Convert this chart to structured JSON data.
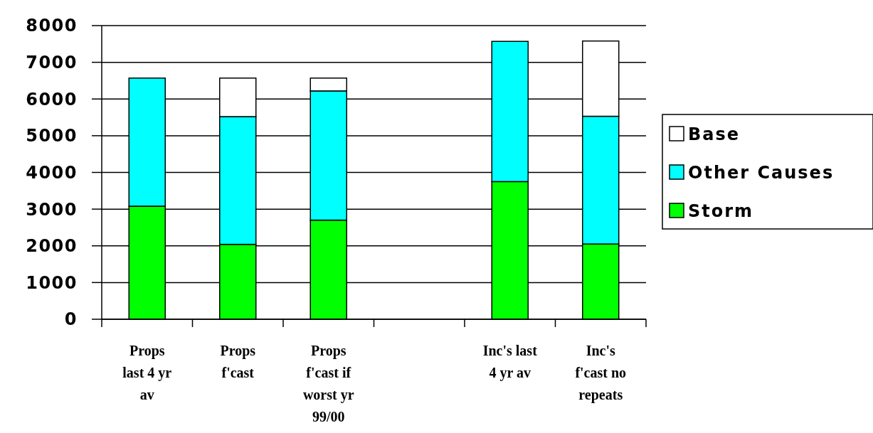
{
  "chart_data": {
    "type": "bar",
    "stacked": true,
    "categories": [
      "Props\nlast 4 yr\nav",
      "Props\nf'cast",
      "Props\nf'cast if\nworst yr\n99/00",
      null,
      "Inc's last\n4 yr av",
      "Inc's\nf'cast no\nrepeats"
    ],
    "series": [
      {
        "name": "Storm",
        "color": "#00ff00",
        "values": [
          3080,
          2040,
          2700,
          null,
          3750,
          2050
        ]
      },
      {
        "name": "Other Causes",
        "color": "#00ffff",
        "values": [
          3490,
          3480,
          3520,
          null,
          3820,
          3480
        ]
      },
      {
        "name": "Base",
        "color": "#ffffff",
        "values": [
          null,
          1050,
          350,
          null,
          null,
          2050
        ]
      }
    ],
    "ylim": [
      0,
      8000
    ],
    "yticks": [
      0,
      1000,
      2000,
      3000,
      4000,
      5000,
      6000,
      7000,
      8000
    ],
    "grid": "y",
    "legend": "right"
  }
}
